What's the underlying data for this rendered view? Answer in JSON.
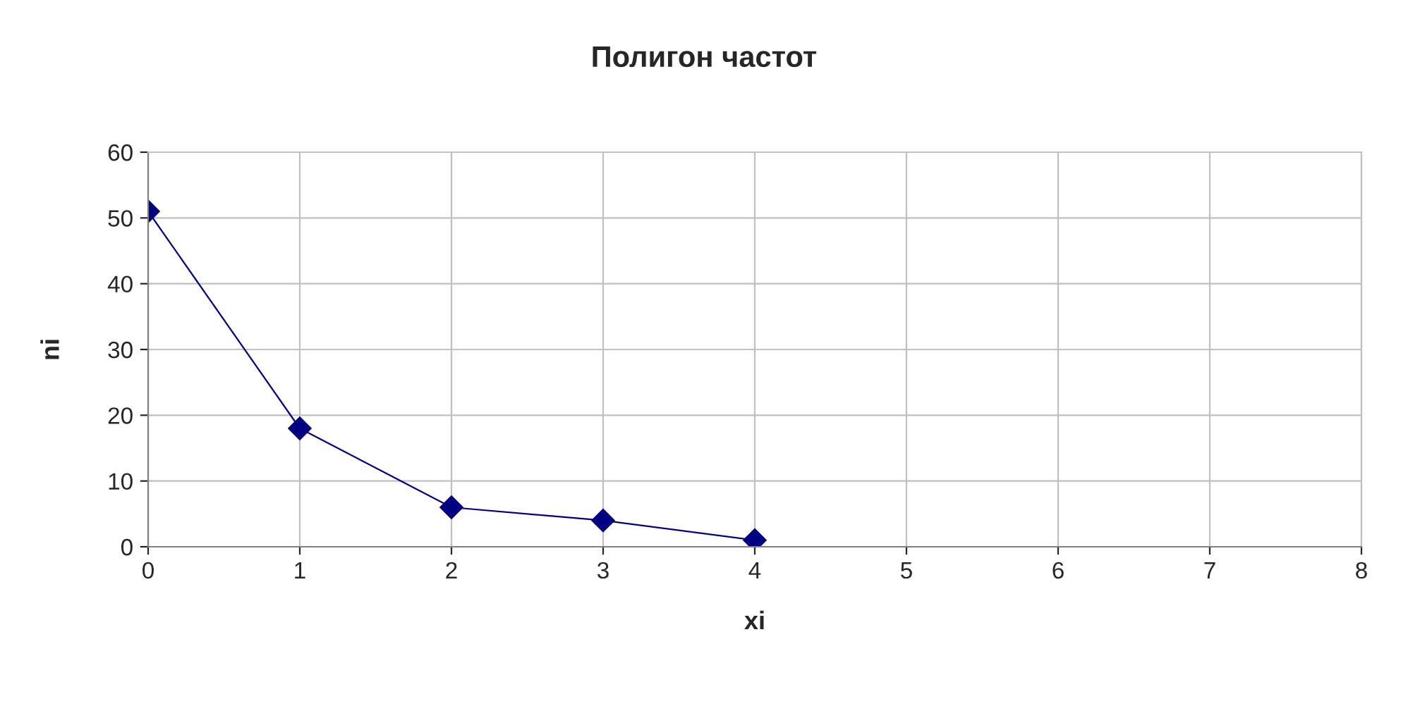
{
  "chart_data": {
    "type": "line",
    "title": "Полигон частот",
    "xlabel": "xi",
    "ylabel": "ni",
    "x": [
      0,
      1,
      2,
      3,
      4
    ],
    "series": [
      {
        "color": "#000080",
        "values": [
          51,
          18,
          6,
          4,
          1
        ]
      }
    ],
    "xlim": [
      0,
      8
    ],
    "xticks": [
      0,
      1,
      2,
      3,
      4,
      5,
      6,
      7,
      8
    ],
    "ylim": [
      0,
      60
    ],
    "yticks": [
      0,
      10,
      20,
      30,
      40,
      50,
      60
    ],
    "grid": true,
    "marker": "diamond",
    "line_style": "solid",
    "legend": false
  }
}
